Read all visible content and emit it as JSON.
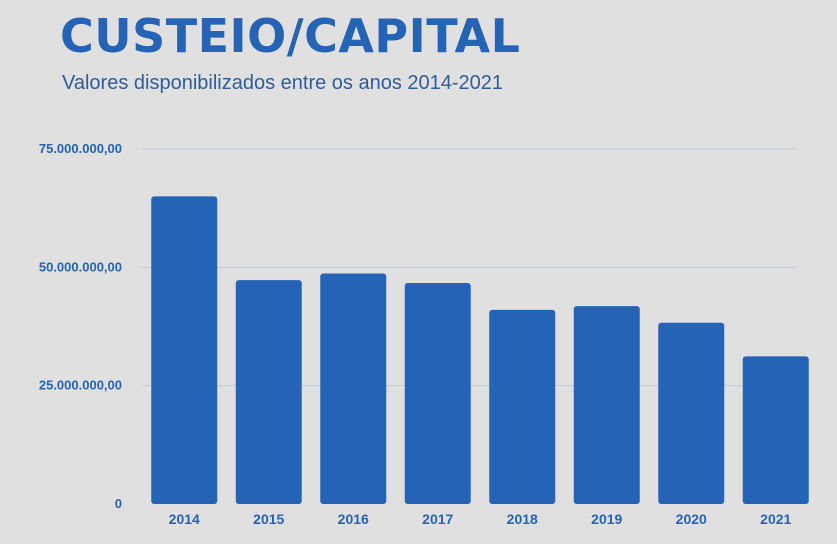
{
  "header": {
    "title": "CUSTEIO/CAPITAL",
    "subtitle": "Valores disponibilizados entre os anos 2014-2021"
  },
  "colors": {
    "accent": "#2463b6",
    "bar": "#2463b6",
    "background": "#e0e0e0",
    "grid": "#c4ccd8"
  },
  "chart_data": {
    "type": "bar",
    "title": "CUSTEIO/CAPITAL",
    "subtitle": "Valores disponibilizados entre os anos 2014-2021",
    "xlabel": "",
    "ylabel": "",
    "categories": [
      "2014",
      "2015",
      "2016",
      "2017",
      "2018",
      "2019",
      "2020",
      "2021"
    ],
    "values": [
      65000000,
      47300000,
      48700000,
      46700000,
      41000000,
      41800000,
      38300000,
      31200000
    ],
    "ylim": [
      0,
      75000000
    ],
    "y_ticks": [
      {
        "value": 0,
        "label": "0"
      },
      {
        "value": 25000000,
        "label": "25.000.000,00"
      },
      {
        "value": 50000000,
        "label": "50.000.000,00"
      },
      {
        "value": 75000000,
        "label": "75.000.000,00"
      }
    ],
    "grid": true,
    "legend": "none"
  }
}
